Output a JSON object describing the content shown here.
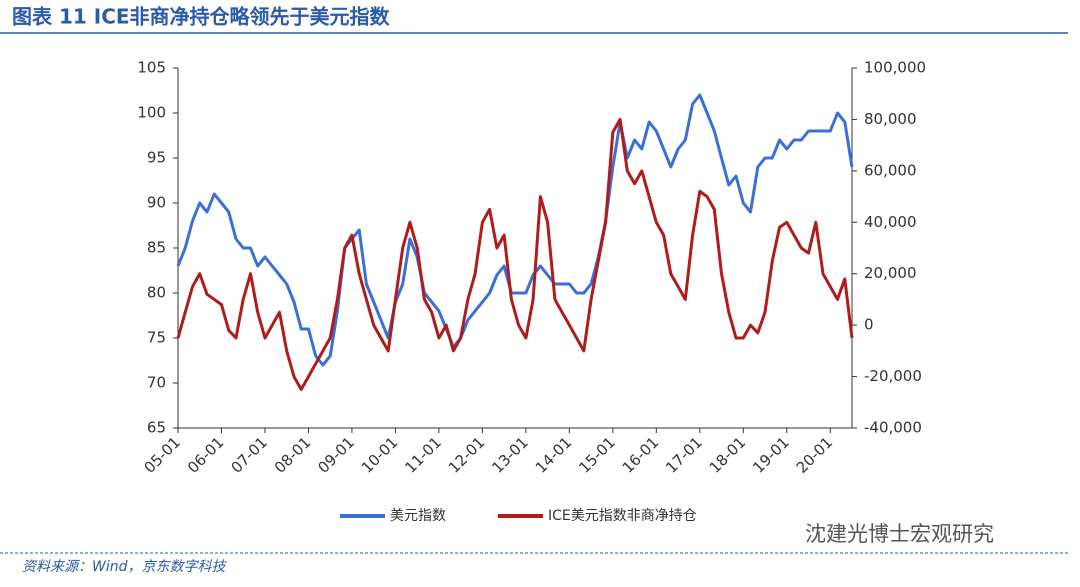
{
  "chart_data": {
    "type": "line",
    "title": "图表 11  ICE非商净持仓略领先于美元指数",
    "source": "资料来源：Wind，京东数字科技",
    "watermark": "沈建光博士宏观研究",
    "categories": [
      "05-01",
      null,
      null,
      null,
      null,
      null,
      "06-01",
      null,
      null,
      null,
      null,
      null,
      "07-01",
      null,
      null,
      null,
      null,
      null,
      "08-01",
      null,
      null,
      null,
      null,
      null,
      "09-01",
      null,
      null,
      null,
      null,
      null,
      "10-01",
      null,
      null,
      null,
      null,
      null,
      "11-01",
      null,
      null,
      null,
      null,
      null,
      "12-01",
      null,
      null,
      null,
      null,
      null,
      "13-01",
      null,
      null,
      null,
      null,
      null,
      "14-01",
      null,
      null,
      null,
      null,
      null,
      "15-01",
      null,
      null,
      null,
      null,
      null,
      "16-01",
      null,
      null,
      null,
      null,
      null,
      "17-01",
      null,
      null,
      null,
      null,
      null,
      "18-01",
      null,
      null,
      null,
      null,
      null,
      "19-01",
      null,
      null,
      null,
      null,
      null,
      "20-01",
      null,
      null,
      null
    ],
    "series": [
      {
        "name": "美元指数",
        "color": "#3a6fd8",
        "axis": "y",
        "values": [
          83,
          85,
          88,
          90,
          89,
          91,
          90,
          89,
          86,
          85,
          85,
          83,
          84,
          83,
          82,
          81,
          79,
          76,
          76,
          73,
          72,
          73,
          78,
          85,
          86,
          87,
          81,
          79,
          77,
          75,
          79,
          81,
          86,
          84,
          80,
          79,
          78,
          76,
          74,
          75,
          77,
          78,
          79,
          80,
          82,
          83,
          80,
          80,
          80,
          82,
          83,
          82,
          81,
          81,
          81,
          80,
          80,
          81,
          84,
          88,
          94,
          99,
          95,
          97,
          96,
          99,
          98,
          96,
          94,
          96,
          97,
          101,
          102,
          100,
          98,
          95,
          92,
          93,
          90,
          89,
          94,
          95,
          95,
          97,
          96,
          97,
          97,
          98,
          98,
          98,
          98,
          100,
          99,
          94
        ]
      },
      {
        "name": "ICE美元指数非商净持仓",
        "color": "#b01c1c",
        "axis": "y2",
        "values": [
          -5000,
          5000,
          15000,
          20000,
          12000,
          10000,
          8000,
          -2000,
          -5000,
          10000,
          20000,
          5000,
          -5000,
          0,
          5000,
          -10000,
          -20000,
          -25000,
          -20000,
          -15000,
          -10000,
          -5000,
          10000,
          30000,
          35000,
          20000,
          10000,
          0,
          -5000,
          -10000,
          10000,
          30000,
          40000,
          30000,
          10000,
          5000,
          -5000,
          0,
          -10000,
          -5000,
          10000,
          20000,
          40000,
          45000,
          30000,
          35000,
          10000,
          0,
          -5000,
          10000,
          50000,
          40000,
          10000,
          5000,
          0,
          -5000,
          -10000,
          10000,
          25000,
          40000,
          75000,
          80000,
          60000,
          55000,
          60000,
          50000,
          40000,
          35000,
          20000,
          15000,
          10000,
          35000,
          52000,
          50000,
          45000,
          20000,
          5000,
          -5000,
          -5000,
          0,
          -3000,
          5000,
          25000,
          38000,
          40000,
          35000,
          30000,
          28000,
          40000,
          20000,
          15000,
          10000,
          18000,
          -5000
        ]
      }
    ],
    "ylim": [
      65,
      105
    ],
    "yticks": [
      65,
      70,
      75,
      80,
      85,
      90,
      95,
      100,
      105
    ],
    "y2lim": [
      -40000,
      100000
    ],
    "y2ticks": [
      {
        "value": -40000,
        "label": "-40,000"
      },
      {
        "value": -20000,
        "label": "-20,000"
      },
      0,
      {
        "value": 20000,
        "label": "20,000"
      },
      {
        "value": 40000,
        "label": "40,000"
      },
      {
        "value": 60000,
        "label": "60,000"
      },
      {
        "value": 80000,
        "label": "80,000"
      },
      {
        "value": 100000,
        "label": "100,000"
      }
    ]
  }
}
